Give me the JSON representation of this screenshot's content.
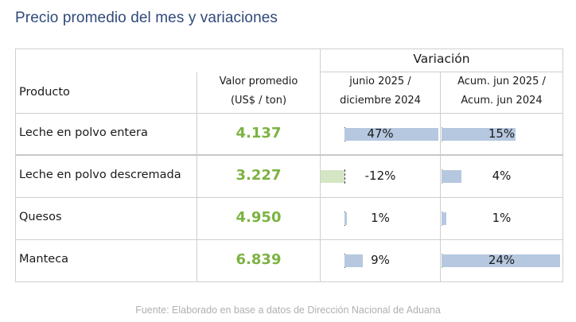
{
  "title": "Precio promedio del mes y variaciones",
  "header": {
    "variacion": "Variación",
    "producto": "Producto",
    "valor_line1": "Valor promedio",
    "valor_line2": "(US$ / ton)",
    "var1_line1": "junio 2025 /",
    "var1_line2": "diciembre 2024",
    "var2_line1": "Acum. jun 2025 /",
    "var2_line2": "Acum. jun 2024"
  },
  "rows": [
    {
      "producto": "Leche en polvo entera",
      "valor": "4.137",
      "var1_label": "47%",
      "var1": 47,
      "var2_label": "15%",
      "var2": 15
    },
    {
      "producto": "Leche en polvo descremada",
      "valor": "3.227",
      "var1_label": "-12%",
      "var1": -12,
      "var2_label": "4%",
      "var2": 4
    },
    {
      "producto": "Quesos",
      "valor": "4.950",
      "var1_label": "1%",
      "var1": 1,
      "var2_label": "1%",
      "var2": 1
    },
    {
      "producto": "Manteca",
      "valor": "6.839",
      "var1_label": "9%",
      "var1": 9,
      "var2_label": "24%",
      "var2": 24
    }
  ],
  "colors": {
    "positive_bar": "#b6c8e0",
    "negative_bar": "#d4e6c3",
    "value_text": "#7cb342",
    "title": "#2f4a7a"
  },
  "source": "Fuente: Elaborado en base a datos de Dirección Nacional de Aduana"
}
